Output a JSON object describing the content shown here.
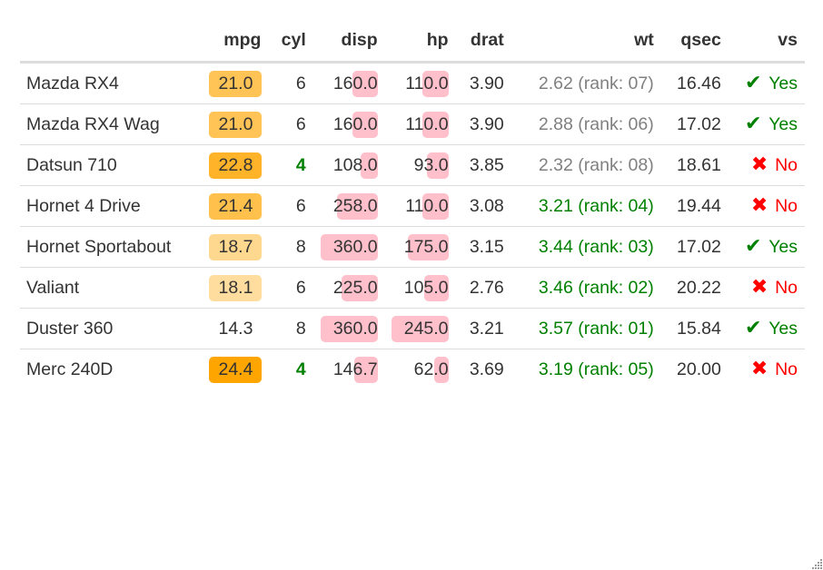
{
  "columns": [
    "",
    "mpg",
    "cyl",
    "disp",
    "hp",
    "drat",
    "wt",
    "qsec",
    "vs"
  ],
  "colors": {
    "mpg_high": "#ffa500",
    "mpg_low": "#ffffff",
    "bar": "#ffc0cb",
    "wt_top": "#008000",
    "wt_other": "#808080",
    "cyl_4": "#008000",
    "vs_yes": "#008000",
    "vs_no": "#ff0000"
  },
  "icons": {
    "vs_yes": "check-icon",
    "vs_no": "cross-icon"
  },
  "rows": [
    {
      "model": "Mazda RX4",
      "mpg": "21.0",
      "cyl": "6",
      "disp": "160.0",
      "hp": "110.0",
      "drat": "3.90",
      "wt": "2.62 (rank: 07)",
      "qsec": "16.46",
      "vs": "Yes"
    },
    {
      "model": "Mazda RX4 Wag",
      "mpg": "21.0",
      "cyl": "6",
      "disp": "160.0",
      "hp": "110.0",
      "drat": "3.90",
      "wt": "2.88 (rank: 06)",
      "qsec": "17.02",
      "vs": "Yes"
    },
    {
      "model": "Datsun 710",
      "mpg": "22.8",
      "cyl": "4",
      "disp": "108.0",
      "hp": "93.0",
      "drat": "3.85",
      "wt": "2.32 (rank: 08)",
      "qsec": "18.61",
      "vs": "No"
    },
    {
      "model": "Hornet 4 Drive",
      "mpg": "21.4",
      "cyl": "6",
      "disp": "258.0",
      "hp": "110.0",
      "drat": "3.08",
      "wt": "3.21 (rank: 04)",
      "qsec": "19.44",
      "vs": "No"
    },
    {
      "model": "Hornet Sportabout",
      "mpg": "18.7",
      "cyl": "8",
      "disp": "360.0",
      "hp": "175.0",
      "drat": "3.15",
      "wt": "3.44 (rank: 03)",
      "qsec": "17.02",
      "vs": "Yes"
    },
    {
      "model": "Valiant",
      "mpg": "18.1",
      "cyl": "6",
      "disp": "225.0",
      "hp": "105.0",
      "drat": "2.76",
      "wt": "3.46 (rank: 02)",
      "qsec": "20.22",
      "vs": "No"
    },
    {
      "model": "Duster 360",
      "mpg": "14.3",
      "cyl": "8",
      "disp": "360.0",
      "hp": "245.0",
      "drat": "3.21",
      "wt": "3.57 (rank: 01)",
      "qsec": "15.84",
      "vs": "Yes"
    },
    {
      "model": "Merc 240D",
      "mpg": "24.4",
      "cyl": "4",
      "disp": "146.7",
      "hp": "62.0",
      "drat": "3.69",
      "wt": "3.19 (rank: 05)",
      "qsec": "20.00",
      "vs": "No"
    }
  ]
}
